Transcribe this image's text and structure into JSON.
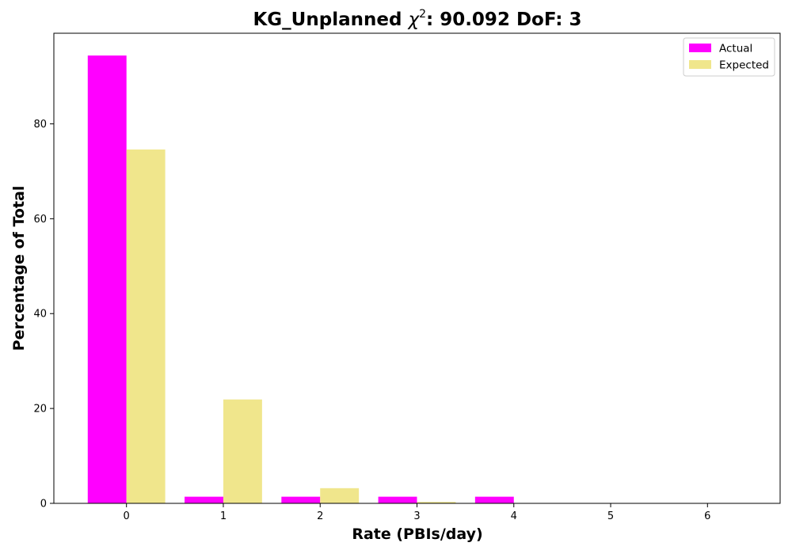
{
  "chart_data": {
    "type": "bar",
    "title_prefix": "KG_Unplanned ",
    "title_symbol": "χ",
    "title_superscript": "2",
    "title_suffix": ": 90.092 DoF: 3",
    "xlabel": "Rate (PBIs/day)",
    "ylabel": "Percentage of Total",
    "categories": [
      "0",
      "1",
      "2",
      "3",
      "4",
      "5",
      "6"
    ],
    "x": [
      0,
      1,
      2,
      3,
      4,
      5,
      6
    ],
    "series": [
      {
        "name": "Actual",
        "color": "#ff00ff",
        "values": [
          94.4,
          1.4,
          1.4,
          1.4,
          1.4,
          0,
          0
        ]
      },
      {
        "name": "Expected",
        "color": "#f0e68c",
        "values": [
          74.6,
          21.9,
          3.2,
          0.3,
          0,
          0,
          0
        ]
      }
    ],
    "xlim": [
      -0.75,
      6.75
    ],
    "ylim": [
      0,
      99.1
    ],
    "yticks": [
      0,
      20,
      40,
      60,
      80
    ],
    "legend_position": "top-right",
    "grid": false
  }
}
